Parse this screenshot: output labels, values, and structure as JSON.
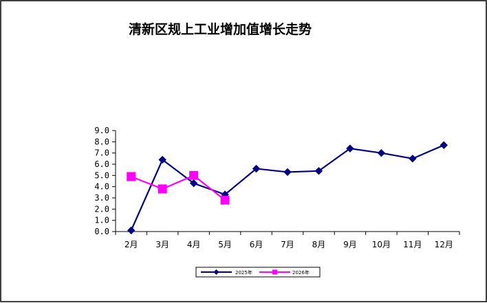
{
  "chart_data": {
    "type": "line",
    "title": "清新区规上工业增加值增长走势",
    "xlabel": "",
    "ylabel": "",
    "categories": [
      "2月",
      "3月",
      "4月",
      "5月",
      "6月",
      "7月",
      "8月",
      "9月",
      "10月",
      "11月",
      "12月"
    ],
    "yticks": [
      "0.0",
      "1.0",
      "2.0",
      "3.0",
      "4.0",
      "5.0",
      "6.0",
      "7.0",
      "8.0",
      "9.0"
    ],
    "ylim": [
      0,
      9
    ],
    "grid": false,
    "legend_position": "bottom",
    "series": [
      {
        "name": "2025年",
        "color": "#000080",
        "marker": "diamond",
        "values": [
          0.1,
          6.4,
          4.3,
          3.3,
          5.6,
          5.3,
          5.4,
          7.4,
          7.0,
          6.5,
          7.7
        ]
      },
      {
        "name": "2026年",
        "color": "#ff00ff",
        "marker": "square",
        "values": [
          4.9,
          3.8,
          5.0,
          2.8,
          null,
          null,
          null,
          null,
          null,
          null,
          null
        ]
      }
    ]
  }
}
